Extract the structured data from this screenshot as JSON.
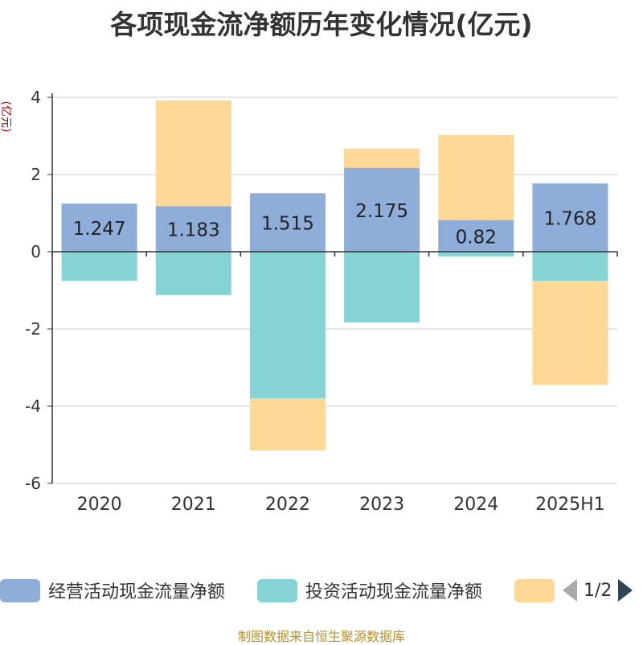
{
  "title": "各项现金流净额历年变化情况(亿元)",
  "source_note": "制图数据来自恒生聚源数据库",
  "legend_pager": "1/2",
  "colors": {
    "operating": "#8eadd9",
    "investing": "#86d3d6",
    "financing": "#fed896",
    "axis": "#333333",
    "grid": "#cccccc",
    "unit": "#cc0000"
  },
  "chart_data": {
    "type": "bar",
    "stacked": true,
    "ylabel": "(亿元)",
    "ylim": [
      -6,
      4
    ],
    "yticks": [
      4,
      2,
      0,
      -2,
      -4,
      -6
    ],
    "categories": [
      "2020",
      "2021",
      "2022",
      "2023",
      "2024",
      "2025H1"
    ],
    "grid": true,
    "legend_position": "bottom",
    "series": [
      {
        "name": "经营活动现金流量净额",
        "values": [
          1.247,
          1.183,
          1.515,
          2.175,
          0.82,
          1.768
        ],
        "labels": [
          "1.247",
          "1.183",
          "1.515",
          "2.175",
          "0.82",
          "1.768"
        ]
      },
      {
        "name": "投资活动现金流量净额",
        "values": [
          -0.75,
          -1.12,
          -3.8,
          -1.83,
          -0.12,
          -0.75
        ]
      },
      {
        "name": "",
        "values": [
          0,
          2.74,
          -1.35,
          0.5,
          2.2,
          -2.7
        ]
      }
    ]
  }
}
